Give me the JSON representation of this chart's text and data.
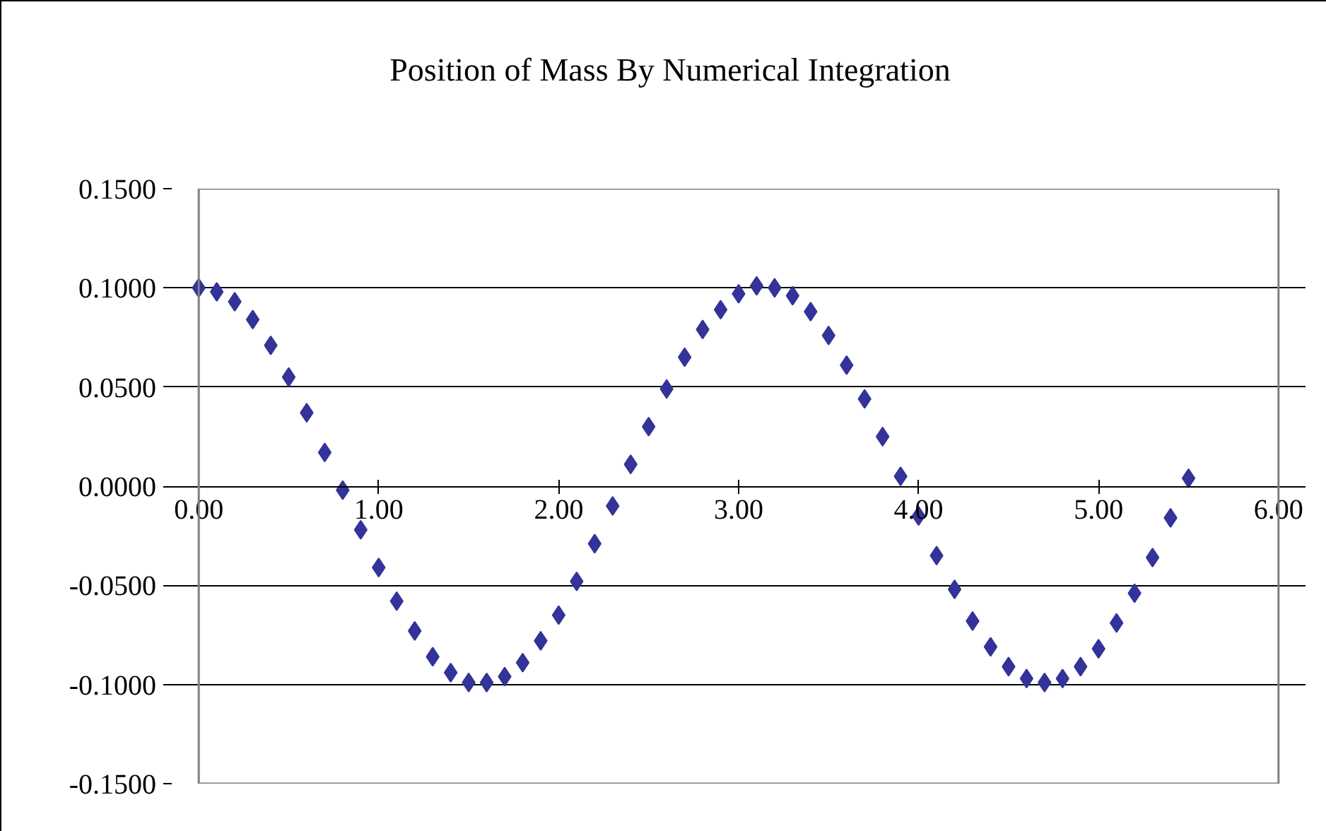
{
  "chart_data": {
    "type": "scatter",
    "title": "Position of Mass By Numerical Integration",
    "x": [
      0.0,
      0.1,
      0.2,
      0.3,
      0.4,
      0.5,
      0.6,
      0.7,
      0.8,
      0.9,
      1.0,
      1.1,
      1.2,
      1.3,
      1.4,
      1.5,
      1.6,
      1.7,
      1.8,
      1.9,
      2.0,
      2.1,
      2.2,
      2.3,
      2.4,
      2.5,
      2.6,
      2.7,
      2.8,
      2.9,
      3.0,
      3.1,
      3.2,
      3.3,
      3.4,
      3.5,
      3.6,
      3.7,
      3.8,
      3.9,
      4.0,
      4.1,
      4.2,
      4.3,
      4.4,
      4.5,
      4.6,
      4.7,
      4.8,
      4.9,
      5.0,
      5.1,
      5.2,
      5.3,
      5.4,
      5.5
    ],
    "series": [
      {
        "color": "#333399",
        "values": [
          0.1,
          0.098,
          0.093,
          0.084,
          0.071,
          0.055,
          0.037,
          0.017,
          -0.002,
          -0.022,
          -0.041,
          -0.058,
          -0.073,
          -0.086,
          -0.094,
          -0.099,
          -0.099,
          -0.096,
          -0.089,
          -0.078,
          -0.065,
          -0.048,
          -0.029,
          -0.01,
          0.011,
          0.03,
          0.049,
          0.065,
          0.079,
          0.089,
          0.097,
          0.101,
          0.1,
          0.096,
          0.088,
          0.076,
          0.061,
          0.044,
          0.025,
          0.005,
          -0.015,
          -0.035,
          -0.052,
          -0.068,
          -0.081,
          -0.091,
          -0.097,
          -0.099,
          -0.097,
          -0.091,
          -0.082,
          -0.069,
          -0.054,
          -0.036,
          -0.016,
          0.004
        ]
      }
    ],
    "xlim": [
      0,
      6
    ],
    "ylim": [
      -0.15,
      0.15
    ],
    "xticks": [
      {
        "value": 0,
        "label": "0.00"
      },
      {
        "value": 1,
        "label": "1.00"
      },
      {
        "value": 2,
        "label": "2.00"
      },
      {
        "value": 3,
        "label": "3.00"
      },
      {
        "value": 4,
        "label": "4.00"
      },
      {
        "value": 5,
        "label": "5.00"
      },
      {
        "value": 6,
        "label": "6.00"
      }
    ],
    "yticks": [
      {
        "value": -0.15,
        "label": "-0.1500"
      },
      {
        "value": -0.1,
        "label": "-0.1000"
      },
      {
        "value": -0.05,
        "label": "-0.0500"
      },
      {
        "value": 0,
        "label": "0.0000"
      },
      {
        "value": 0.05,
        "label": "0.0500"
      },
      {
        "value": 0.1,
        "label": "0.1000"
      },
      {
        "value": 0.15,
        "label": "0.1500"
      }
    ],
    "grid": "y",
    "marker": "diamond"
  }
}
